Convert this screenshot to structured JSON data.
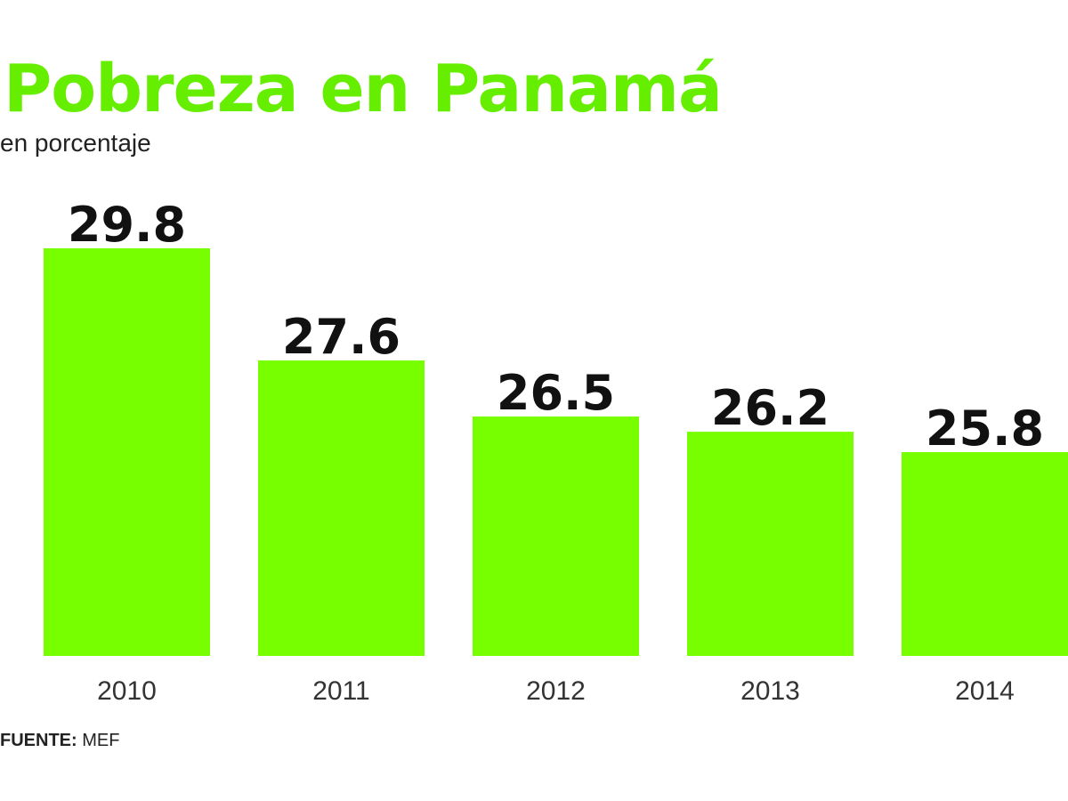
{
  "header": {
    "title": "Pobreza en Panamá",
    "subtitle": "en porcentaje"
  },
  "footer": {
    "source_label": "FUENTE:",
    "source_value": "MEF"
  },
  "colors": {
    "bar": "#77ff00",
    "title": "#66ee00"
  },
  "chart_data": {
    "type": "bar",
    "title": "Pobreza en Panamá",
    "subtitle": "en porcentaje",
    "categories": [
      "2010",
      "2011",
      "2012",
      "2013",
      "2014"
    ],
    "values": [
      29.8,
      27.6,
      26.5,
      26.2,
      25.8
    ],
    "data_labels": [
      "29.8",
      "27.6",
      "26.5",
      "26.2",
      "25.8"
    ],
    "grid": false,
    "legend": "none"
  }
}
